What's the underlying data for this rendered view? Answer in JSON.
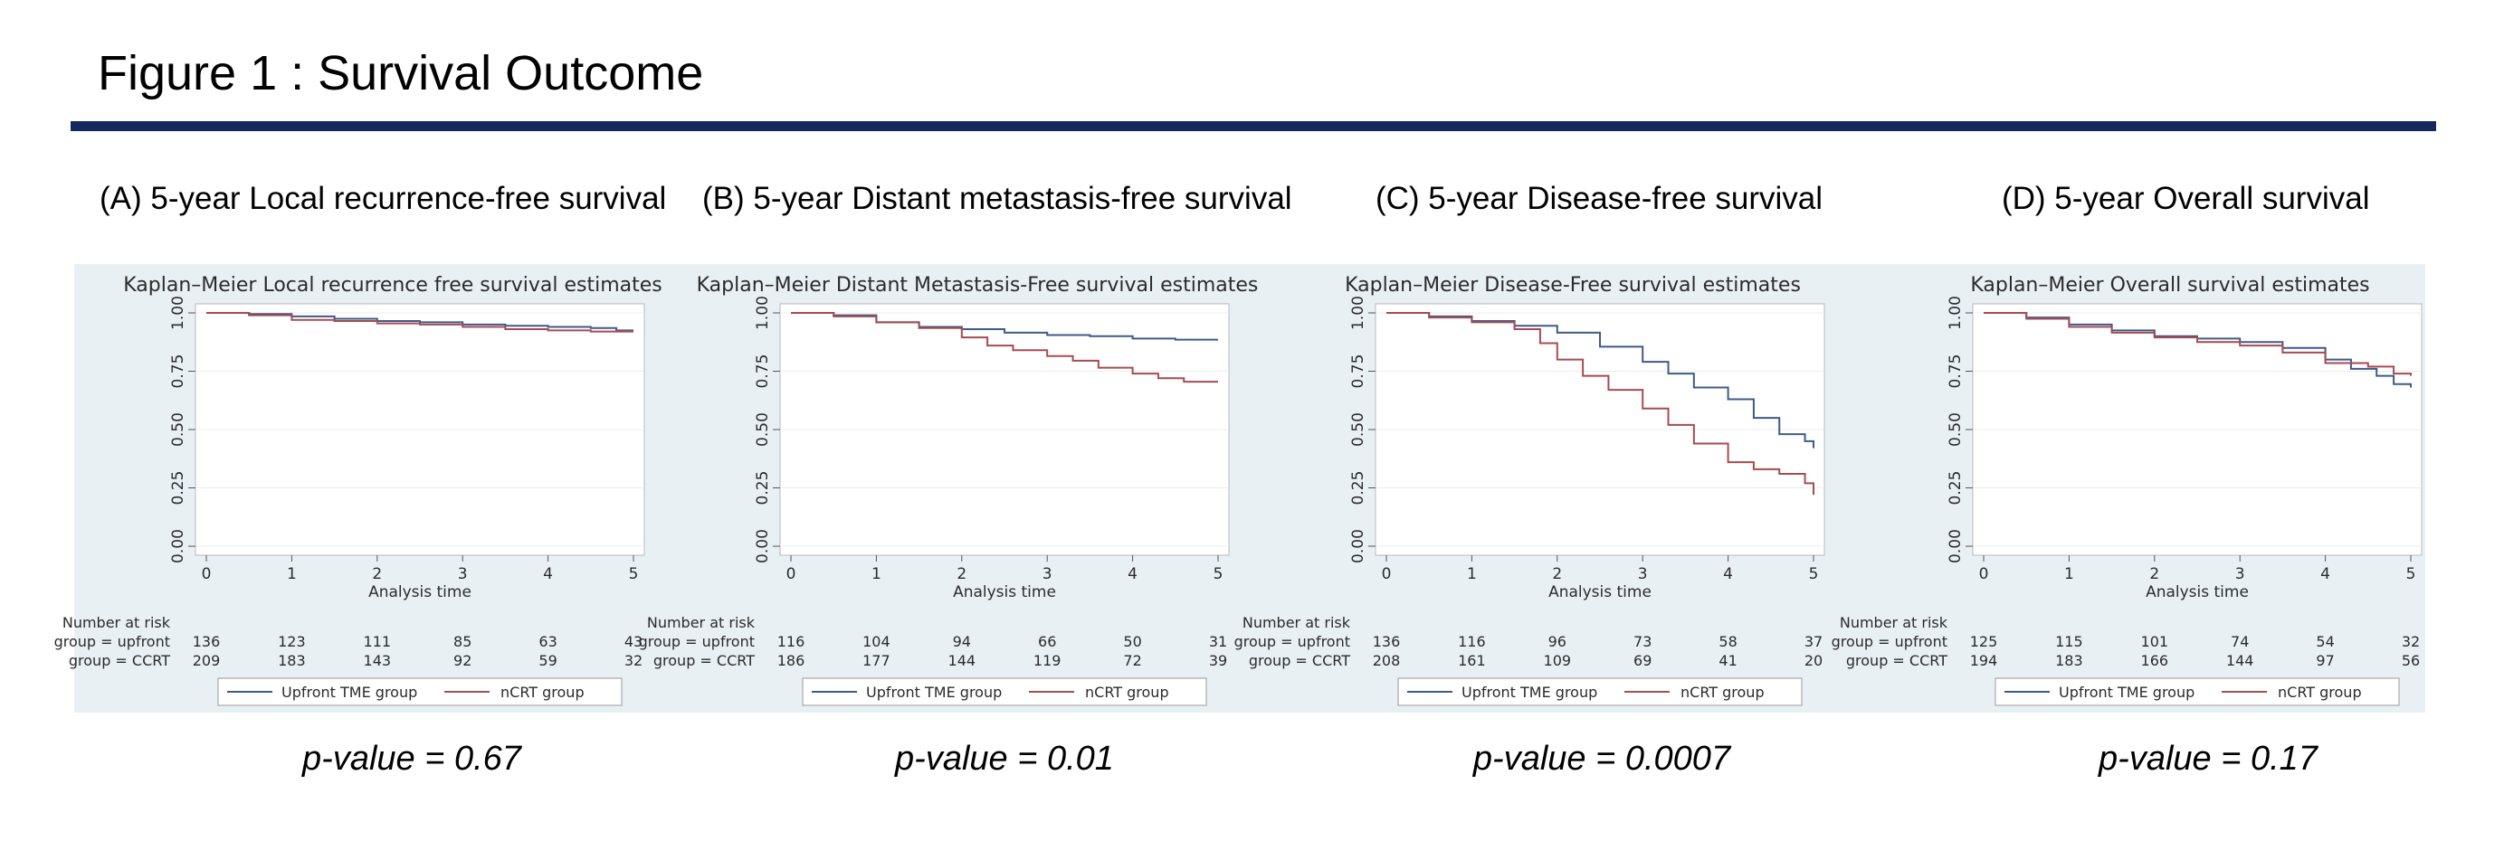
{
  "page": {
    "title": "Figure 1 : Survival Outcome",
    "risk_heading": "Number at risk",
    "legend": [
      "Upfront TME group",
      "nCRT group"
    ],
    "risk_groups": [
      "group = upfront",
      "group = CCRT"
    ],
    "colors": {
      "rule": "#13285e",
      "upfront": "#3e5b87",
      "ncrt": "#a64b52",
      "band": "#e9f0f4"
    }
  },
  "panels": [
    {
      "label": "(A) 5-year Local recurrence-free survival",
      "p_value": "p-value = 0.67"
    },
    {
      "label": "(B) 5-year Distant metastasis-free survival",
      "p_value": "p-value = 0.01"
    },
    {
      "label": "(C) 5-year Disease-free survival",
      "p_value": "p-value = 0.0007"
    },
    {
      "label": "(D) 5-year Overall survival",
      "p_value": "p-value = 0.17"
    }
  ],
  "chart_data": [
    {
      "type": "line",
      "title": "Kaplan–Meier Local recurrence free survival estimates",
      "xlabel": "Analysis time",
      "xlim": [
        0,
        5
      ],
      "ylim": [
        0,
        1
      ],
      "x_ticks": [
        "0",
        "1",
        "2",
        "3",
        "4",
        "5"
      ],
      "y_ticks": [
        "0.00",
        "0.25",
        "0.50",
        "0.75",
        "1.00"
      ],
      "series": [
        {
          "name": "Upfront TME group",
          "x": [
            0,
            0.5,
            1.0,
            1.5,
            2.0,
            2.5,
            3.0,
            3.5,
            4.0,
            4.5,
            4.8,
            5.0
          ],
          "y": [
            1.0,
            0.995,
            0.985,
            0.975,
            0.965,
            0.96,
            0.95,
            0.945,
            0.94,
            0.935,
            0.925,
            0.925
          ]
        },
        {
          "name": "nCRT group",
          "x": [
            0,
            0.5,
            1.0,
            1.5,
            2.0,
            2.5,
            3.0,
            3.5,
            4.0,
            4.5,
            5.0
          ],
          "y": [
            1.0,
            0.99,
            0.97,
            0.965,
            0.955,
            0.95,
            0.94,
            0.93,
            0.925,
            0.92,
            0.92
          ]
        }
      ],
      "risk_table": {
        "times": [
          "0",
          "1",
          "2",
          "3",
          "4",
          "5"
        ],
        "upfront": [
          "136",
          "123",
          "111",
          "85",
          "63",
          "43"
        ],
        "ccrt": [
          "209",
          "183",
          "143",
          "92",
          "59",
          "32"
        ]
      }
    },
    {
      "type": "line",
      "title": "Kaplan–Meier Distant Metastasis-Free survival estimates",
      "xlabel": "Analysis time",
      "xlim": [
        0,
        5
      ],
      "ylim": [
        0,
        1
      ],
      "x_ticks": [
        "0",
        "1",
        "2",
        "3",
        "4",
        "5"
      ],
      "y_ticks": [
        "0.00",
        "0.25",
        "0.50",
        "0.75",
        "1.00"
      ],
      "series": [
        {
          "name": "Upfront TME group",
          "x": [
            0,
            0.5,
            1.0,
            1.5,
            2.0,
            2.5,
            3.0,
            3.5,
            4.0,
            4.5,
            5.0
          ],
          "y": [
            1.0,
            0.99,
            0.96,
            0.94,
            0.93,
            0.915,
            0.905,
            0.9,
            0.89,
            0.885,
            0.885
          ]
        },
        {
          "name": "nCRT group",
          "x": [
            0,
            0.5,
            1.0,
            1.5,
            2.0,
            2.3,
            2.6,
            3.0,
            3.3,
            3.6,
            4.0,
            4.3,
            4.6,
            5.0
          ],
          "y": [
            1.0,
            0.985,
            0.96,
            0.935,
            0.895,
            0.86,
            0.84,
            0.815,
            0.795,
            0.765,
            0.74,
            0.72,
            0.705,
            0.705
          ]
        }
      ],
      "risk_table": {
        "times": [
          "0",
          "1",
          "2",
          "3",
          "4",
          "5"
        ],
        "upfront": [
          "116",
          "104",
          "94",
          "66",
          "50",
          "31"
        ],
        "ccrt": [
          "186",
          "177",
          "144",
          "119",
          "72",
          "39"
        ]
      }
    },
    {
      "type": "line",
      "title": "Kaplan–Meier Disease-Free survival estimates",
      "xlabel": "Analysis time",
      "xlim": [
        0,
        5
      ],
      "ylim": [
        0,
        1
      ],
      "x_ticks": [
        "0",
        "1",
        "2",
        "3",
        "4",
        "5"
      ],
      "y_ticks": [
        "0.00",
        "0.25",
        "0.50",
        "0.75",
        "1.00"
      ],
      "series": [
        {
          "name": "Upfront TME group",
          "x": [
            0,
            0.5,
            1.0,
            1.5,
            2.0,
            2.5,
            3.0,
            3.3,
            3.6,
            4.0,
            4.3,
            4.6,
            4.9,
            5.0
          ],
          "y": [
            1.0,
            0.985,
            0.965,
            0.945,
            0.915,
            0.855,
            0.79,
            0.74,
            0.68,
            0.63,
            0.55,
            0.48,
            0.45,
            0.42
          ]
        },
        {
          "name": "nCRT group",
          "x": [
            0,
            0.5,
            1.0,
            1.5,
            1.8,
            2.0,
            2.3,
            2.6,
            3.0,
            3.3,
            3.6,
            4.0,
            4.3,
            4.6,
            4.9,
            5.0
          ],
          "y": [
            1.0,
            0.98,
            0.96,
            0.93,
            0.87,
            0.8,
            0.73,
            0.67,
            0.59,
            0.52,
            0.44,
            0.36,
            0.33,
            0.31,
            0.27,
            0.22
          ]
        }
      ],
      "risk_table": {
        "times": [
          "0",
          "1",
          "2",
          "3",
          "4",
          "5"
        ],
        "upfront": [
          "136",
          "116",
          "96",
          "73",
          "58",
          "37"
        ],
        "ccrt": [
          "208",
          "161",
          "109",
          "69",
          "41",
          "20"
        ]
      }
    },
    {
      "type": "line",
      "title": "Kaplan–Meier Overall survival estimates",
      "xlabel": "Analysis time",
      "xlim": [
        0,
        5
      ],
      "ylim": [
        0,
        1
      ],
      "x_ticks": [
        "0",
        "1",
        "2",
        "3",
        "4",
        "5"
      ],
      "y_ticks": [
        "0.00",
        "0.25",
        "0.50",
        "0.75",
        "1.00"
      ],
      "series": [
        {
          "name": "Upfront TME group",
          "x": [
            0,
            0.5,
            1.0,
            1.5,
            2.0,
            2.5,
            3.0,
            3.5,
            4.0,
            4.3,
            4.6,
            4.8,
            5.0
          ],
          "y": [
            1.0,
            0.98,
            0.95,
            0.925,
            0.9,
            0.89,
            0.875,
            0.85,
            0.8,
            0.76,
            0.73,
            0.695,
            0.68
          ]
        },
        {
          "name": "nCRT group",
          "x": [
            0,
            0.5,
            1.0,
            1.5,
            2.0,
            2.5,
            3.0,
            3.5,
            4.0,
            4.5,
            4.8,
            5.0
          ],
          "y": [
            1.0,
            0.975,
            0.94,
            0.915,
            0.895,
            0.875,
            0.86,
            0.83,
            0.785,
            0.77,
            0.74,
            0.73
          ]
        }
      ],
      "risk_table": {
        "times": [
          "0",
          "1",
          "2",
          "3",
          "4",
          "5"
        ],
        "upfront": [
          "125",
          "115",
          "101",
          "74",
          "54",
          "32"
        ],
        "ccrt": [
          "194",
          "183",
          "166",
          "144",
          "97",
          "56"
        ]
      }
    }
  ]
}
